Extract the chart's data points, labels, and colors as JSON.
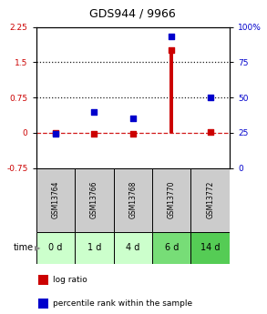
{
  "title": "GDS944 / 9966",
  "samples": [
    "GSM13764",
    "GSM13766",
    "GSM13768",
    "GSM13770",
    "GSM13772"
  ],
  "time_labels": [
    "0 d",
    "1 d",
    "4 d",
    "6 d",
    "14 d"
  ],
  "log_ratio": [
    0.0,
    -0.02,
    -0.02,
    1.75,
    0.02
  ],
  "percentile_rank": [
    24,
    40,
    35,
    93,
    50
  ],
  "log_ratio_color": "#cc0000",
  "percentile_color": "#0000cc",
  "ylim_left": [
    -0.75,
    2.25
  ],
  "ylim_right": [
    0,
    100
  ],
  "yticks_left": [
    -0.75,
    0.0,
    0.75,
    1.5,
    2.25
  ],
  "yticks_right": [
    0,
    25,
    50,
    75,
    100
  ],
  "hline_vals": [
    0.0,
    0.75,
    1.5
  ],
  "hline_styles": [
    "--",
    ":",
    ":"
  ],
  "hline_colors": [
    "#cc0000",
    "#000000",
    "#000000"
  ],
  "sample_bg_color": "#cccccc",
  "time_bg_colors": [
    "#ccffcc",
    "#ccffcc",
    "#ccffcc",
    "#77dd77",
    "#55cc55"
  ],
  "legend_items": [
    "log ratio",
    "percentile rank within the sample"
  ],
  "legend_colors": [
    "#cc0000",
    "#0000cc"
  ],
  "bar_width": 0.1,
  "marker_size": 14
}
